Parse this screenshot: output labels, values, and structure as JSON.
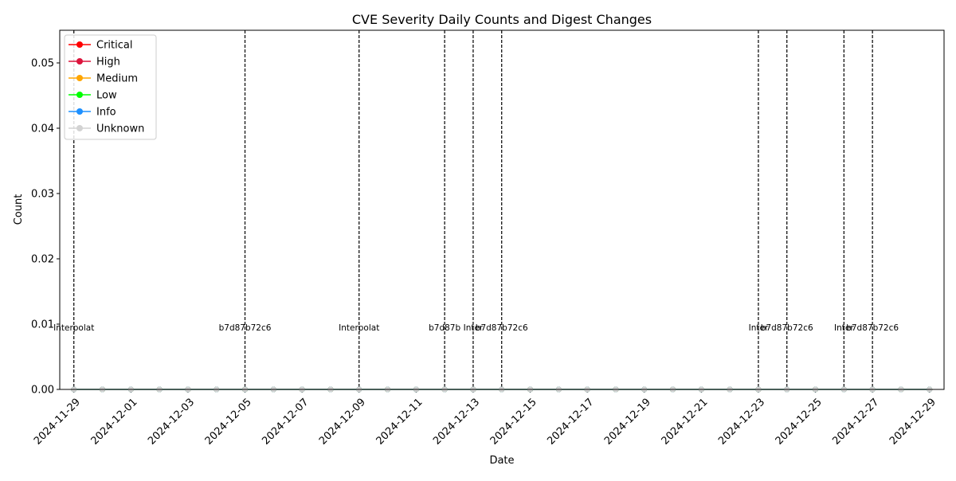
{
  "chart_data": {
    "type": "line",
    "title": "CVE Severity Daily Counts and Digest Changes",
    "xlabel": "Date",
    "ylabel": "Count",
    "x_start": "2024-11-29",
    "x_end": "2024-12-29",
    "xlim": [
      "2024-11-28",
      "2024-12-30"
    ],
    "ylim": [
      0,
      0.055
    ],
    "x_ticks": [
      "2024-11-29",
      "2024-12-01",
      "2024-12-03",
      "2024-12-05",
      "2024-12-07",
      "2024-12-09",
      "2024-12-11",
      "2024-12-13",
      "2024-12-15",
      "2024-12-17",
      "2024-12-19",
      "2024-12-21",
      "2024-12-23",
      "2024-12-25",
      "2024-12-27",
      "2024-12-29"
    ],
    "y_ticks": [
      0.0,
      0.01,
      0.02,
      0.03,
      0.04,
      0.05
    ],
    "y_tick_labels": [
      "0.00",
      "0.01",
      "0.02",
      "0.03",
      "0.04",
      "0.05"
    ],
    "legend_position": "top-left",
    "grid": false,
    "series": [
      {
        "name": "Critical",
        "color": "#ff0000",
        "value": 0
      },
      {
        "name": "High",
        "color": "#dc143c",
        "value": 0
      },
      {
        "name": "Medium",
        "color": "#ffa500",
        "value": 0
      },
      {
        "name": "Low",
        "color": "#00ff00",
        "value": 0
      },
      {
        "name": "Info",
        "color": "#1e90ff",
        "value": 0
      },
      {
        "name": "Unknown",
        "color": "#d3d3d3",
        "value": 0
      }
    ],
    "digest_changes": [
      {
        "date": "2024-11-29",
        "label": "Interpolat"
      },
      {
        "date": "2024-12-05",
        "label": "b7d87b72c6"
      },
      {
        "date": "2024-12-09",
        "label": "Interpolat"
      },
      {
        "date": "2024-12-12",
        "label": "b7d87b"
      },
      {
        "date": "2024-12-13",
        "label": "Inter"
      },
      {
        "date": "2024-12-14",
        "label": "b7d87b72c6"
      },
      {
        "date": "2024-12-23",
        "label": "Inter"
      },
      {
        "date": "2024-12-24",
        "label": "b7d87b72c6"
      },
      {
        "date": "2024-12-26",
        "label": "Inter"
      },
      {
        "date": "2024-12-27",
        "label": "b7d87b72c6"
      }
    ],
    "annotation_y": 0.0095
  }
}
